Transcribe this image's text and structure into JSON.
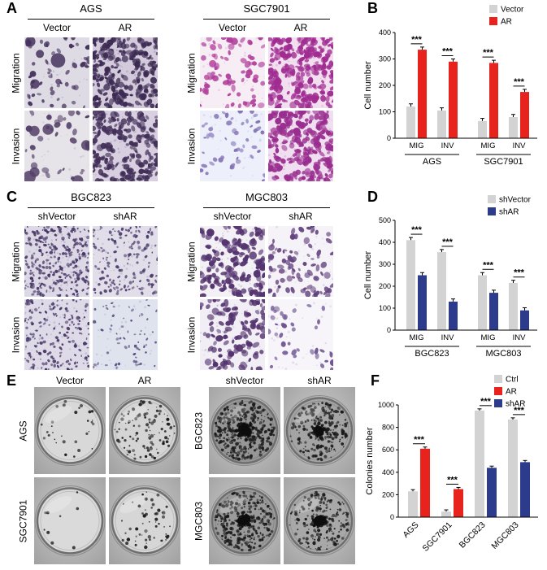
{
  "panels": {
    "A": {
      "label": "A",
      "blocks": [
        {
          "title": "AGS",
          "cols": [
            "Vector",
            "AR"
          ],
          "rows": [
            "Migration",
            "Invasion"
          ],
          "images": [
            {
              "label": "Migration Vector",
              "bg": "#dfdbe4",
              "cell_color": "#46335e",
              "count": 55,
              "min_r": 2.0,
              "max_r": 4.2,
              "blobs": 4
            },
            {
              "label": "Migration AR",
              "bg": "#d3cbdc",
              "cell_color": "#3c2a52",
              "count": 230,
              "min_r": 2.0,
              "max_r": 4.4,
              "blobs": 0
            },
            {
              "label": "Invasion Vector",
              "bg": "#e6e3e9",
              "cell_color": "#544069",
              "count": 30,
              "min_r": 2.0,
              "max_r": 4.6,
              "blobs": 6
            },
            {
              "label": "Invasion AR",
              "bg": "#d8d0e1",
              "cell_color": "#422f58",
              "count": 210,
              "min_r": 2.0,
              "max_r": 4.4,
              "blobs": 0
            }
          ]
        },
        {
          "title": "SGC7901",
          "cols": [
            "Vector",
            "AR"
          ],
          "rows": [
            "Migration",
            "Invasion"
          ],
          "images": [
            {
              "label": "Migration Vector",
              "bg": "#f7eef5",
              "cell_color": "#b03f9b",
              "count": 75,
              "min_r": 2.2,
              "max_r": 4.6,
              "blobs": 0
            },
            {
              "label": "Migration AR",
              "bg": "#f2e0f0",
              "cell_color": "#a02c91",
              "count": 240,
              "min_r": 2.2,
              "max_r": 4.8,
              "blobs": 0
            },
            {
              "label": "Invasion Vector",
              "bg": "#edeffa",
              "cell_color": "#8272b4",
              "count": 48,
              "min_r": 1.8,
              "max_r": 4.0,
              "blobs": 0
            },
            {
              "label": "Invasion AR",
              "bg": "#f0dff0",
              "cell_color": "#992e8f",
              "count": 225,
              "min_r": 2.2,
              "max_r": 4.8,
              "blobs": 0
            }
          ]
        }
      ]
    },
    "B": {
      "label": "B"
    },
    "C": {
      "label": "C",
      "blocks": [
        {
          "title": "BGC823",
          "cols": [
            "shVector",
            "shAR"
          ],
          "rows": [
            "Migration",
            "Invasion"
          ],
          "images": [
            {
              "label": "Migration shVector",
              "bg": "#ddd8e6",
              "cell_color": "#473765",
              "count": 280,
              "min_r": 1.1,
              "max_r": 2.4,
              "blobs": 0
            },
            {
              "label": "Migration shAR",
              "bg": "#e1dde9",
              "cell_color": "#4d3d6b",
              "count": 150,
              "min_r": 1.1,
              "max_r": 2.4,
              "blobs": 0
            },
            {
              "label": "Invasion shVector",
              "bg": "#dfdae8",
              "cell_color": "#473765",
              "count": 175,
              "min_r": 1.1,
              "max_r": 2.4,
              "blobs": 0
            },
            {
              "label": "Invasion shAR",
              "bg": "#dfe3ee",
              "cell_color": "#554a7c",
              "count": 60,
              "min_r": 1.1,
              "max_r": 2.2,
              "blobs": 0
            }
          ]
        },
        {
          "title": "MGC803",
          "cols": [
            "shVector",
            "shAR"
          ],
          "rows": [
            "Migration",
            "Invasion"
          ],
          "images": [
            {
              "label": "Migration shVector",
              "bg": "#f3f0f6",
              "cell_color": "#54346f",
              "count": 160,
              "min_r": 2.4,
              "max_r": 5.0,
              "blobs": 0
            },
            {
              "label": "Migration shAR",
              "bg": "#f6f3f8",
              "cell_color": "#64447f",
              "count": 85,
              "min_r": 2.0,
              "max_r": 4.4,
              "blobs": 0
            },
            {
              "label": "Invasion shVector",
              "bg": "#f1eef5",
              "cell_color": "#54346f",
              "count": 115,
              "min_r": 2.4,
              "max_r": 5.0,
              "blobs": 0
            },
            {
              "label": "Invasion shAR",
              "bg": "#f7f5fa",
              "cell_color": "#6c5390",
              "count": 38,
              "min_r": 2.0,
              "max_r": 4.2,
              "blobs": 0
            }
          ]
        }
      ]
    },
    "D": {
      "label": "D"
    },
    "E": {
      "label": "E",
      "blocks": [
        {
          "cols": [
            "Vector",
            "AR"
          ],
          "rows": [
            "AGS",
            "SGC7901"
          ],
          "dishes": [
            {
              "label": "AGS Vector",
              "inner": "#d8d8d8",
              "colonies": 30,
              "center_cluster": 0
            },
            {
              "label": "AGS AR",
              "inner": "#d4d4d4",
              "colonies": 110,
              "center_cluster": 0
            },
            {
              "label": "SGC7901 Vector",
              "inner": "#dadada",
              "colonies": 10,
              "center_cluster": 0
            },
            {
              "label": "SGC7901 AR",
              "inner": "#d6d6d6",
              "colonies": 55,
              "center_cluster": 0
            }
          ]
        },
        {
          "cols": [
            "shVector",
            "shAR"
          ],
          "rows": [
            "BGC823",
            "MGC803"
          ],
          "dishes": [
            {
              "label": "BGC823 shVector",
              "inner": "#969696",
              "colonies": 380,
              "center_cluster": 160
            },
            {
              "label": "BGC823 shAR",
              "inner": "#a4a4a4",
              "colonies": 240,
              "center_cluster": 90
            },
            {
              "label": "MGC803 shVector",
              "inner": "#9b9b9b",
              "colonies": 300,
              "center_cluster": 120
            },
            {
              "label": "MGC803 shAR",
              "inner": "#a8a8a8",
              "colonies": 190,
              "center_cluster": 110
            }
          ]
        }
      ]
    },
    "F": {
      "label": "F"
    }
  },
  "chart_data": [
    {
      "id": "B",
      "type": "bar",
      "title": "",
      "ylabel": "Cell number",
      "ylim": [
        0,
        400
      ],
      "yticks": [
        0,
        100,
        200,
        300,
        400
      ],
      "error_bar": 10,
      "legend": [
        {
          "label": "Vector",
          "color": "#d3d3d3"
        },
        {
          "label": "AR",
          "color": "#e8231d"
        }
      ],
      "group_labels": [
        "AGS",
        "SGC7901"
      ],
      "clusters": [
        {
          "group": "AGS",
          "category": "MIG",
          "bars": [
            {
              "series": 0,
              "value": 120
            },
            {
              "series": 1,
              "value": 335
            }
          ],
          "sig": "***"
        },
        {
          "group": "AGS",
          "category": "INV",
          "bars": [
            {
              "series": 0,
              "value": 105
            },
            {
              "series": 1,
              "value": 290
            }
          ],
          "sig": "***"
        },
        {
          "group": "SGC7901",
          "category": "MIG",
          "bars": [
            {
              "series": 0,
              "value": 65
            },
            {
              "series": 1,
              "value": 285
            }
          ],
          "sig": "***"
        },
        {
          "group": "SGC7901",
          "category": "INV",
          "bars": [
            {
              "series": 0,
              "value": 80
            },
            {
              "series": 1,
              "value": 175
            }
          ],
          "sig": "***"
        }
      ]
    },
    {
      "id": "D",
      "type": "bar",
      "title": "",
      "ylabel": "Cell number",
      "ylim": [
        0,
        500
      ],
      "yticks": [
        0,
        100,
        200,
        300,
        400,
        500
      ],
      "error_bar": 12,
      "legend": [
        {
          "label": "shVector",
          "color": "#d3d3d3"
        },
        {
          "label": "shAR",
          "color": "#2c3b8c"
        }
      ],
      "group_labels": [
        "BGC823",
        "MGC803"
      ],
      "clusters": [
        {
          "group": "BGC823",
          "category": "MIG",
          "bars": [
            {
              "series": 0,
              "value": 410
            },
            {
              "series": 1,
              "value": 250
            }
          ],
          "sig": "***"
        },
        {
          "group": "BGC823",
          "category": "INV",
          "bars": [
            {
              "series": 0,
              "value": 355
            },
            {
              "series": 1,
              "value": 130
            }
          ],
          "sig": "***"
        },
        {
          "group": "MGC803",
          "category": "MIG",
          "bars": [
            {
              "series": 0,
              "value": 250
            },
            {
              "series": 1,
              "value": 170
            }
          ],
          "sig": "***"
        },
        {
          "group": "MGC803",
          "category": "INV",
          "bars": [
            {
              "series": 0,
              "value": 215
            },
            {
              "series": 1,
              "value": 90
            }
          ],
          "sig": "***"
        }
      ]
    },
    {
      "id": "F",
      "type": "bar",
      "title": "",
      "ylabel": "Colonies  number",
      "ylim": [
        0,
        1000
      ],
      "yticks": [
        0,
        200,
        400,
        600,
        800,
        1000
      ],
      "error_bar": 15,
      "x_rotate": 45,
      "legend": [
        {
          "label": "Ctrl",
          "color": "#d3d3d3"
        },
        {
          "label": "AR",
          "color": "#e8231d"
        },
        {
          "label": "shAR",
          "color": "#2c3b8c"
        }
      ],
      "clusters": [
        {
          "category": "AGS",
          "bars": [
            {
              "series": 0,
              "value": 230
            },
            {
              "series": 1,
              "value": 610
            }
          ],
          "sig": "***"
        },
        {
          "category": "SGC7901",
          "bars": [
            {
              "series": 0,
              "value": 50
            },
            {
              "series": 1,
              "value": 250
            }
          ],
          "sig": "***"
        },
        {
          "category": "BGC823",
          "bars": [
            {
              "series": 0,
              "value": 950
            },
            {
              "series": 2,
              "value": 440
            }
          ],
          "sig": "***"
        },
        {
          "category": "MGC803",
          "bars": [
            {
              "series": 0,
              "value": 870
            },
            {
              "series": 2,
              "value": 490
            }
          ],
          "sig": "***"
        }
      ]
    }
  ]
}
